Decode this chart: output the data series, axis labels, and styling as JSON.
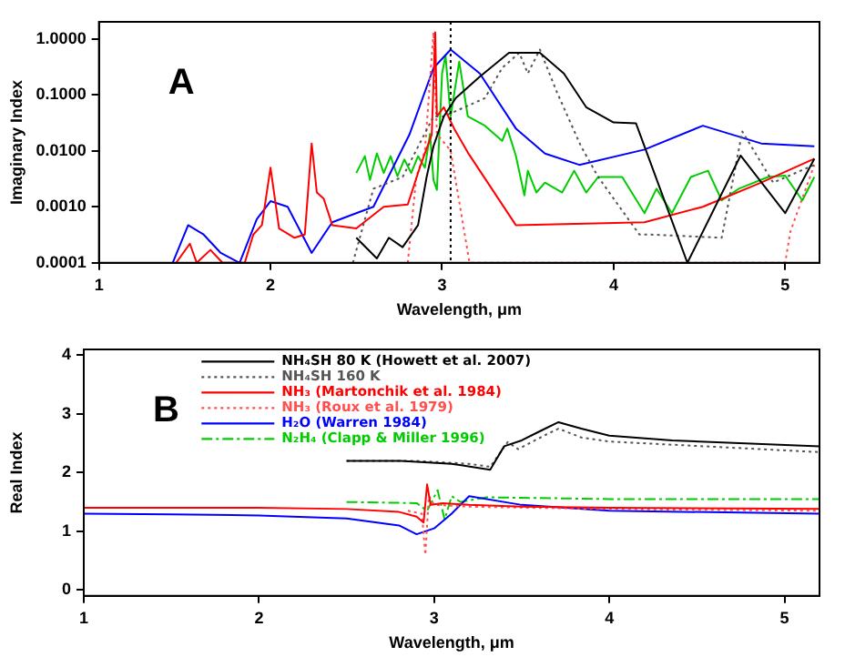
{
  "chart_data": [
    {
      "type": "line",
      "xlabel": "Wavelength, μm",
      "ylabel": "Imaginary Index",
      "annotations": [
        "A"
      ],
      "log": "y",
      "xlim": [
        1,
        5.2
      ],
      "xticks": [
        1,
        2,
        3,
        4,
        5
      ],
      "ylim": [
        0.0001,
        2
      ],
      "yticks": [
        {
          "value": 1,
          "label": "1.0000"
        },
        {
          "value": 0.1,
          "label": "0.1000"
        },
        {
          "value": 0.01,
          "label": "0.0100"
        },
        {
          "value": 0.001,
          "label": "0.0010"
        },
        {
          "value": 0.0001,
          "label": "0.0001"
        }
      ],
      "ref_lines": [
        {
          "axis": "x",
          "value": 3.05,
          "color": "#000000",
          "line_style": "dotted"
        }
      ],
      "series": [
        {
          "color": "#000000",
          "line_style": "solid",
          "x": [
            2.5,
            2.62,
            2.69,
            2.77,
            2.86,
            2.91,
            2.95,
            3.01,
            3.08,
            3.22,
            3.39,
            3.5,
            3.57,
            3.71,
            3.84,
            4.0,
            4.13,
            4.43,
            4.74,
            5.0,
            5.17
          ],
          "values": [
            0.00028,
            0.00012,
            0.00028,
            0.00019,
            0.00047,
            0.0034,
            0.012,
            0.041,
            0.087,
            0.21,
            0.56,
            0.56,
            0.56,
            0.24,
            0.06,
            0.032,
            0.031,
            0.0001,
            0.0082,
            0.00077,
            0.0072
          ]
        },
        {
          "color": "#555555",
          "line_style": "dotted",
          "x": [
            2.48,
            2.6,
            2.77,
            2.95,
            3.01,
            3.25,
            3.35,
            3.45,
            3.5,
            3.57,
            3.67,
            3.81,
            3.91,
            4.15,
            4.21,
            4.63,
            4.75,
            4.93,
            5.17
          ],
          "values": [
            0.0001,
            0.0021,
            0.0034,
            0.041,
            0.041,
            0.087,
            0.3,
            0.56,
            0.24,
            0.64,
            0.11,
            0.012,
            0.0034,
            0.00032,
            0.00032,
            0.00028,
            0.022,
            0.0027,
            0.0056
          ]
        },
        {
          "color": "#ff0000",
          "line_style": "solid",
          "x": [
            1.45,
            1.53,
            1.57,
            1.65,
            1.72,
            1.85,
            1.9,
            1.95,
            2.0,
            2.05,
            2.14,
            2.2,
            2.24,
            2.27,
            2.31,
            2.36,
            2.5,
            2.66,
            2.8,
            2.87,
            2.94,
            2.96,
            2.97,
            3.01,
            3.07,
            3.15,
            3.43,
            4.18,
            4.52,
            4.86,
            5.17
          ],
          "values": [
            0.0001,
            0.00022,
            0.0001,
            0.00017,
            0.0001,
            0.0001,
            0.00032,
            0.00047,
            0.005,
            0.00041,
            0.00028,
            0.00032,
            0.0135,
            0.0018,
            0.0014,
            0.00047,
            0.00041,
            0.001,
            0.0011,
            0.005,
            0.0195,
            1.3,
            0.041,
            0.06,
            0.025,
            0.0093,
            0.00047,
            0.00053,
            0.001,
            0.0027,
            0.0072
          ]
        },
        {
          "color": "#ff5050",
          "line_style": "dotted",
          "x": [
            2.8,
            2.85,
            2.9,
            2.95,
            2.97,
            3.05,
            3.16,
            5.0,
            5.03,
            5.17
          ],
          "values": [
            0.0001,
            0.0034,
            0.01,
            1.3,
            0.02,
            0.01,
            0.0001,
            0.0001,
            0.00036,
            0.0056
          ]
        },
        {
          "color": "#0000ff",
          "line_style": "solid",
          "x": [
            1.43,
            1.52,
            1.61,
            1.71,
            1.82,
            1.92,
            2.0,
            2.1,
            2.24,
            2.36,
            2.5,
            2.6,
            2.81,
            2.95,
            3.05,
            3.22,
            3.43,
            3.6,
            3.8,
            4.18,
            4.52,
            4.86,
            5.17
          ],
          "values": [
            0.0001,
            0.00047,
            0.00032,
            0.00015,
            0.0001,
            0.0006,
            0.00126,
            0.001,
            0.00015,
            0.00053,
            0.00077,
            0.001,
            0.0195,
            0.3,
            0.64,
            0.24,
            0.025,
            0.0089,
            0.0056,
            0.0105,
            0.028,
            0.0135,
            0.012
          ]
        },
        {
          "color": "#00cc00",
          "line_style": "solid",
          "x": [
            2.5,
            2.55,
            2.58,
            2.62,
            2.66,
            2.7,
            2.74,
            2.78,
            2.82,
            2.86,
            2.9,
            2.93,
            2.95,
            2.97,
            3.0,
            3.02,
            3.05,
            3.1,
            3.15,
            3.25,
            3.35,
            3.38,
            3.43,
            3.48,
            3.5,
            3.55,
            3.6,
            3.7,
            3.77,
            3.84,
            3.91,
            4.05,
            4.18,
            4.25,
            4.34,
            4.45,
            4.55,
            4.63,
            4.73,
            4.9,
            5.0,
            5.1,
            5.17
          ],
          "values": [
            0.004,
            0.008,
            0.003,
            0.009,
            0.004,
            0.008,
            0.0035,
            0.007,
            0.004,
            0.008,
            0.005,
            0.02,
            0.003,
            0.002,
            0.24,
            0.5,
            0.041,
            0.39,
            0.041,
            0.028,
            0.015,
            0.025,
            0.0082,
            0.0016,
            0.0044,
            0.0018,
            0.0027,
            0.0018,
            0.0044,
            0.0018,
            0.0034,
            0.0034,
            0.00077,
            0.0021,
            0.00077,
            0.0034,
            0.0044,
            0.0013,
            0.0021,
            0.0034,
            0.0036,
            0.0013,
            0.0034
          ]
        }
      ]
    },
    {
      "type": "line",
      "xlabel": "Wavelength, μm",
      "ylabel": "Real Index",
      "annotations": [
        "B"
      ],
      "legend": "top",
      "xlim": [
        1,
        5.2
      ],
      "xticks": [
        1,
        2,
        3,
        4,
        5
      ],
      "ylim": [
        -0.1,
        4.1
      ],
      "yticks": [
        0,
        1,
        2,
        3,
        4
      ],
      "series": [
        {
          "name": "NH₄SH 80 K (Howett et al. 2007)",
          "color": "#000000",
          "line_style": "solid",
          "x": [
            2.5,
            2.81,
            3.1,
            3.32,
            3.4,
            3.5,
            3.6,
            3.71,
            3.84,
            4.0,
            4.36,
            5.2
          ],
          "values": [
            2.2,
            2.2,
            2.15,
            2.05,
            2.45,
            2.55,
            2.7,
            2.86,
            2.75,
            2.63,
            2.55,
            2.45
          ]
        },
        {
          "name": "NH₄SH 160 K",
          "color": "#555555",
          "line_style": "dotted",
          "x": [
            2.5,
            2.9,
            3.2,
            3.32,
            3.42,
            3.48,
            3.64,
            3.71,
            3.84,
            4.0,
            5.2
          ],
          "values": [
            2.2,
            2.2,
            2.15,
            2.1,
            2.52,
            2.4,
            2.65,
            2.75,
            2.6,
            2.53,
            2.35
          ]
        },
        {
          "name": "NH₃ (Martonchik et al. 1984)",
          "color": "#ff0000",
          "line_style": "solid",
          "x": [
            1.0,
            2.0,
            2.5,
            2.8,
            2.9,
            2.94,
            2.96,
            2.98,
            3.05,
            3.2,
            3.5,
            4.0,
            5.2
          ],
          "values": [
            1.4,
            1.4,
            1.38,
            1.33,
            1.25,
            1.15,
            1.8,
            1.45,
            1.48,
            1.45,
            1.42,
            1.4,
            1.38
          ]
        },
        {
          "name": "NH₃ (Roux et al. 1979)",
          "color": "#ff5050",
          "line_style": "dotted",
          "x": [
            2.85,
            2.93,
            2.95,
            2.97,
            3.0,
            3.2,
            4.0,
            5.2
          ],
          "values": [
            1.35,
            1.3,
            0.6,
            1.6,
            1.45,
            1.42,
            1.38,
            1.35
          ]
        },
        {
          "name": "H₂O (Warren 1984)",
          "color": "#0000ff",
          "line_style": "solid",
          "x": [
            1.0,
            1.5,
            2.0,
            2.5,
            2.8,
            2.9,
            3.0,
            3.1,
            3.2,
            3.5,
            4.0,
            5.2
          ],
          "values": [
            1.3,
            1.29,
            1.27,
            1.22,
            1.1,
            0.95,
            1.05,
            1.3,
            1.6,
            1.45,
            1.35,
            1.3
          ]
        },
        {
          "name": "N₂H₄ (Clapp & Miller 1996)",
          "color": "#00cc00",
          "line_style": "dashed",
          "x": [
            2.5,
            2.9,
            2.96,
            3.02,
            3.06,
            3.1,
            3.15,
            3.3,
            4.0,
            5.2
          ],
          "values": [
            1.5,
            1.48,
            1.35,
            1.7,
            1.2,
            1.6,
            1.5,
            1.58,
            1.55,
            1.55
          ]
        }
      ]
    }
  ]
}
